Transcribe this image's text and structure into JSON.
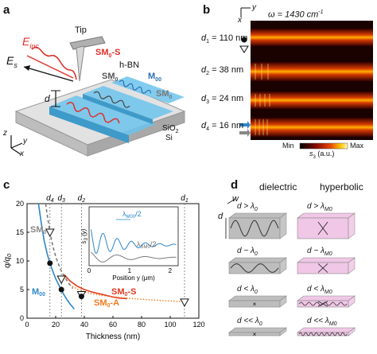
{
  "panels": {
    "a": {
      "letter": "a",
      "labels": {
        "e_inc": "E",
        "e_inc_sub": "inc",
        "e_s": "E",
        "e_s_sub": "s",
        "tip": "Tip",
        "sm0_s": "SM",
        "sm0_s_sub": "0",
        "sm0_s_suffix": "-S",
        "hbn": "h-BN",
        "sm0_mid": "SM",
        "sm0_mid_sub": "0",
        "m00": "M",
        "m00_sub": "00",
        "sm0_right": "SM",
        "sm0_right_sub": "0",
        "d": "d",
        "sio2": "SiO",
        "sio2_sub": "2",
        "si": "Si",
        "axis_z": "z",
        "axis_y": "y",
        "axis_x": "x"
      },
      "colors": {
        "strip": "#6cc3ec",
        "wave_red": "#e0302a",
        "wave_blue": "#2b6fb5",
        "substrate": "#c8c8c8"
      }
    },
    "b": {
      "letter": "b",
      "omega": "ω = 1430 cm",
      "omega_sup": "-1",
      "axis_y": "y",
      "axis_x": "x",
      "rows": [
        {
          "label": "d",
          "sub": "1",
          "value": " = 110 nm"
        },
        {
          "label": "d",
          "sub": "2",
          "value": " = 38 nm"
        },
        {
          "label": "d",
          "sub": "3",
          "value": " = 24 nm"
        },
        {
          "label": "d",
          "sub": "4",
          "value": " = 16 nm"
        }
      ],
      "colorbar": {
        "min": "Min",
        "max": "Max",
        "unit": "s",
        "unit_sub": "3",
        "unit_suffix": " (a.u.)"
      }
    },
    "c": {
      "letter": "c",
      "xlabel": "Thickness (nm)",
      "ylabel": "q/q",
      "ylabel_sub": "0",
      "xticks": [
        "0",
        "20",
        "40",
        "60",
        "80",
        "100",
        "120"
      ],
      "yticks": [
        "0",
        "5",
        "10",
        "15",
        "20"
      ],
      "top_labels": [
        {
          "label": "d",
          "sub": "4"
        },
        {
          "label": "d",
          "sub": "3"
        },
        {
          "label": "d",
          "sub": "2"
        },
        {
          "label": "d",
          "sub": "1"
        }
      ],
      "curve_labels": {
        "sm0": "SM",
        "sm0_sub": "0",
        "m00": "M",
        "m00_sub": "00",
        "sm0_s": "SM",
        "sm0_s_sub": "0",
        "sm0_s_suffix": "-S",
        "sm0_a": "SM",
        "sm0_a_sub": "0",
        "sm0_a_suffix": "-A"
      },
      "inset": {
        "xlabel": "Position y (μm)",
        "ylabel": "s",
        "ylabel_sub": "3",
        "ylabel_suffix": " (y)",
        "xticks": [
          "0",
          "1",
          "2"
        ],
        "ann_m00": "λ",
        "ann_m00_sub": "M00",
        "ann_m00_suffix": "/2",
        "ann_sm0": "λ",
        "ann_sm0_sub": "SM0",
        "ann_sm0_suffix": "/2"
      },
      "colors": {
        "m00": "#2e86c8",
        "sm0": "#7a7a7a",
        "sm0_s": "#e03a1e",
        "sm0_a": "#f07a1a"
      }
    },
    "d": {
      "letter": "d",
      "col_dielectric": "dielectric",
      "col_hyperbolic": "hyperbolic",
      "w": "w",
      "d": "d",
      "dielectric_rows": [
        {
          "text": "d > λ",
          "sub": "0"
        },
        {
          "text": "d ~ λ",
          "sub": "0"
        },
        {
          "text": "d < λ",
          "sub": "0"
        },
        {
          "text": "d << λ",
          "sub": "0"
        }
      ],
      "hyperbolic_rows": [
        {
          "text": "d > λ",
          "sub": "M0"
        },
        {
          "text": "d ~ λ",
          "sub": "M0"
        },
        {
          "text": "d < λ",
          "sub": "M0"
        },
        {
          "text": "d << λ",
          "sub": "M0"
        }
      ],
      "colors": {
        "dielectric": "#bdbdbd",
        "hyperbolic": "#f0c7e6"
      }
    }
  },
  "chart_data": {
    "type": "line",
    "title": "",
    "xlabel": "Thickness (nm)",
    "ylabel": "q/q0",
    "xlim": [
      0,
      120
    ],
    "ylim": [
      0,
      20
    ],
    "series": [
      {
        "name": "M00",
        "x": [
          8,
          10,
          12,
          14,
          16,
          18,
          20,
          22,
          24,
          26,
          28,
          30,
          33
        ],
        "y": [
          20,
          16.5,
          13.5,
          11.3,
          9.6,
          8.2,
          6.9,
          5.9,
          4.9,
          4.0,
          3.2,
          2.5,
          1.6
        ]
      },
      {
        "name": "SM0",
        "x": [
          13,
          14,
          16,
          18,
          20,
          22,
          24,
          26,
          28,
          30,
          32
        ],
        "y": [
          20,
          18.2,
          15.0,
          12.6,
          10.8,
          9.4,
          8.2,
          7.3,
          6.5,
          5.8,
          5.2
        ]
      },
      {
        "name": "SM0-S",
        "x": [
          26,
          30,
          35,
          40,
          45,
          50,
          55,
          60,
          65,
          70
        ],
        "y": [
          7.6,
          6.5,
          5.6,
          5.0,
          4.6,
          4.3,
          4.0,
          3.7,
          3.5,
          3.4
        ]
      },
      {
        "name": "SM0-A",
        "x": [
          30,
          35,
          40,
          45,
          50,
          60,
          70,
          80,
          90,
          100,
          110
        ],
        "y": [
          5.8,
          5.1,
          4.6,
          4.3,
          4.05,
          3.75,
          3.5,
          3.3,
          3.15,
          3.0,
          2.9
        ]
      }
    ],
    "markers": [
      {
        "symbol": "triangle",
        "x": [
          16,
          24,
          38,
          110
        ],
        "y": [
          15.0,
          6.8,
          4.1,
          2.8
        ]
      },
      {
        "symbol": "dot",
        "x": [
          16,
          24,
          38
        ],
        "y": [
          9.6,
          5.0,
          3.8
        ]
      }
    ],
    "reference_lines_x": [
      16,
      24,
      38,
      110
    ],
    "inset": {
      "type": "line",
      "xlabel": "Position y (μm)",
      "ylabel": "s3 (y)",
      "xlim": [
        0,
        2.2
      ],
      "series_colors": [
        "#2e86c8",
        "#7a7a7a"
      ]
    }
  }
}
